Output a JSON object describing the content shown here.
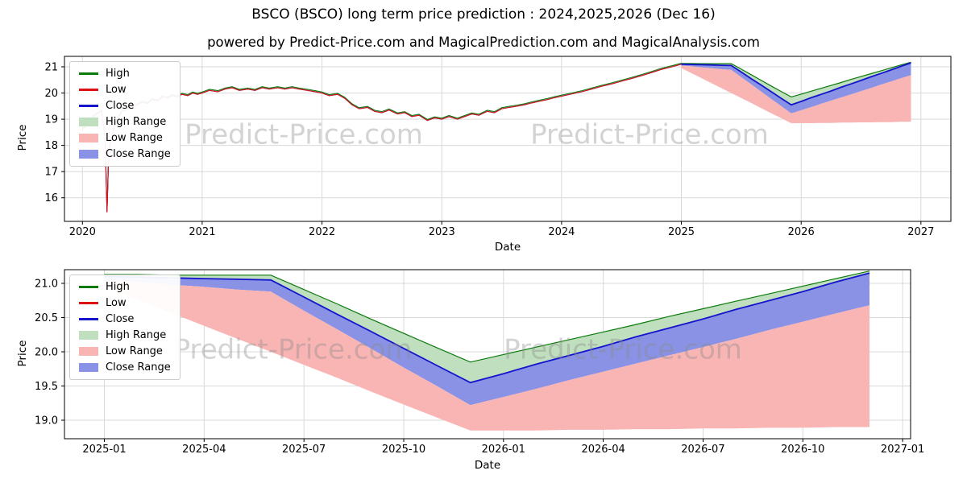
{
  "page": {
    "title": "BSCO (BSCO) long term price prediction : 2024,2025,2026 (Dec 16)",
    "subtitle": "powered by Predict-Price.com and MagicalPrediction.com and MagicalAnalysis.com",
    "watermark": "Predict-Price.com"
  },
  "colors": {
    "high": "#0b7a0b",
    "low": "#dd1111",
    "close": "#1414cc",
    "high_range": "#bfdfbf",
    "low_range": "#f9b4b4",
    "close_range": "#8992e4",
    "grid": "#d9d9d9"
  },
  "legend": [
    {
      "label": "High",
      "swatch": "line",
      "colorKey": "high"
    },
    {
      "label": "Low",
      "swatch": "line",
      "colorKey": "low"
    },
    {
      "label": "Close",
      "swatch": "line",
      "colorKey": "close"
    },
    {
      "label": "High Range",
      "swatch": "patch",
      "colorKey": "high_range"
    },
    {
      "label": "Low Range",
      "swatch": "patch",
      "colorKey": "low_range"
    },
    {
      "label": "Close Range",
      "swatch": "patch",
      "colorKey": "close_range"
    }
  ],
  "chart_data": [
    {
      "type": "line",
      "panel": "top",
      "xlabel": "Date",
      "ylabel": "Price",
      "xlim": [
        2019.85,
        2027.25
      ],
      "ylim": [
        15.1,
        21.4
      ],
      "xticks": [
        {
          "v": 2020,
          "label": "2020"
        },
        {
          "v": 2021,
          "label": "2021"
        },
        {
          "v": 2022,
          "label": "2022"
        },
        {
          "v": 2023,
          "label": "2023"
        },
        {
          "v": 2024,
          "label": "2024"
        },
        {
          "v": 2025,
          "label": "2025"
        },
        {
          "v": 2026,
          "label": "2026"
        },
        {
          "v": 2027,
          "label": "2027"
        }
      ],
      "yticks": [
        {
          "v": 16,
          "label": "16"
        },
        {
          "v": 17,
          "label": "17"
        },
        {
          "v": 18,
          "label": "18"
        },
        {
          "v": 19,
          "label": "19"
        },
        {
          "v": 20,
          "label": "20"
        },
        {
          "v": 21,
          "label": "21"
        }
      ],
      "history": {
        "x": [
          2020.0,
          2020.04,
          2020.08,
          2020.12,
          2020.16,
          2020.19,
          2020.205,
          2020.22,
          2020.25,
          2020.29,
          2020.33,
          2020.38,
          2020.42,
          2020.46,
          2020.5,
          2020.54,
          2020.58,
          2020.63,
          2020.67,
          2020.71,
          2020.75,
          2020.79,
          2020.83,
          2020.88,
          2020.92,
          2020.96,
          2021.0,
          2021.06,
          2021.13,
          2021.19,
          2021.25,
          2021.31,
          2021.38,
          2021.44,
          2021.5,
          2021.56,
          2021.63,
          2021.69,
          2021.75,
          2021.81,
          2021.88,
          2021.94,
          2022.0,
          2022.06,
          2022.13,
          2022.19,
          2022.25,
          2022.31,
          2022.38,
          2022.44,
          2022.5,
          2022.56,
          2022.63,
          2022.69,
          2022.75,
          2022.81,
          2022.88,
          2022.94,
          2023.0,
          2023.06,
          2023.13,
          2023.19,
          2023.25,
          2023.31,
          2023.38,
          2023.44,
          2023.5,
          2023.56,
          2023.63,
          2023.69,
          2023.75,
          2023.81,
          2023.88,
          2023.94,
          2024.0,
          2024.08,
          2024.17,
          2024.25,
          2024.33,
          2024.42,
          2024.5,
          2024.58,
          2024.67,
          2024.75,
          2024.83,
          2024.92,
          2025.0
        ],
        "close": [
          18.6,
          18.8,
          19.05,
          19.2,
          19.3,
          18.2,
          15.45,
          17.8,
          18.45,
          19.0,
          19.3,
          19.38,
          19.5,
          19.55,
          19.65,
          19.6,
          19.75,
          19.7,
          19.85,
          19.8,
          19.9,
          19.85,
          19.95,
          19.9,
          20.0,
          19.95,
          20.0,
          20.1,
          20.05,
          20.15,
          20.2,
          20.1,
          20.15,
          20.1,
          20.2,
          20.15,
          20.2,
          20.15,
          20.2,
          20.15,
          20.1,
          20.05,
          20.0,
          19.9,
          19.95,
          19.8,
          19.55,
          19.4,
          19.45,
          19.3,
          19.25,
          19.35,
          19.2,
          19.25,
          19.1,
          19.15,
          18.95,
          19.05,
          19.0,
          19.1,
          19.0,
          19.1,
          19.2,
          19.15,
          19.3,
          19.25,
          19.4,
          19.45,
          19.5,
          19.55,
          19.62,
          19.68,
          19.75,
          19.82,
          19.88,
          19.96,
          20.05,
          20.15,
          20.25,
          20.35,
          20.45,
          20.55,
          20.67,
          20.78,
          20.9,
          21.0,
          21.1
        ]
      },
      "forecast": {
        "x": [
          2025.0,
          2025.083,
          2025.167,
          2025.25,
          2025.333,
          2025.417,
          2025.5,
          2025.583,
          2025.667,
          2025.75,
          2025.833,
          2025.917,
          2026.0,
          2026.083,
          2026.167,
          2026.25,
          2026.333,
          2026.417,
          2026.5,
          2026.583,
          2026.667,
          2026.75,
          2026.833,
          2026.917
        ],
        "close": [
          21.1,
          21.09,
          21.08,
          21.07,
          21.06,
          21.05,
          20.8,
          20.55,
          20.3,
          20.05,
          19.8,
          19.55,
          19.68,
          19.82,
          19.95,
          20.08,
          20.22,
          20.35,
          20.48,
          20.62,
          20.75,
          20.88,
          21.02,
          21.15
        ],
        "high_upper": [
          21.13,
          21.13,
          21.12,
          21.12,
          21.12,
          21.12,
          20.91,
          20.7,
          20.48,
          20.27,
          20.06,
          19.85,
          19.96,
          20.07,
          20.18,
          20.29,
          20.4,
          20.52,
          20.63,
          20.74,
          20.85,
          20.96,
          21.07,
          21.18
        ],
        "close_lower": [
          21.05,
          21.02,
          20.98,
          20.95,
          20.91,
          20.88,
          20.6,
          20.33,
          20.05,
          19.77,
          19.5,
          19.22,
          19.34,
          19.46,
          19.59,
          19.71,
          19.83,
          19.95,
          20.07,
          20.19,
          20.32,
          20.44,
          20.56,
          20.68
        ],
        "low_lower": [
          20.95,
          20.76,
          20.57,
          20.38,
          20.19,
          20.0,
          19.81,
          19.62,
          19.42,
          19.23,
          19.04,
          18.85,
          18.85,
          18.85,
          18.86,
          18.86,
          18.87,
          18.87,
          18.88,
          18.88,
          18.89,
          18.89,
          18.9,
          18.9
        ]
      }
    },
    {
      "type": "line",
      "panel": "bottom",
      "xlabel": "Date",
      "ylabel": "Price",
      "xlim": [
        2024.9,
        2027.02
      ],
      "ylim": [
        18.73,
        21.2
      ],
      "xticks": [
        {
          "v": 2025.0,
          "label": "2025-01"
        },
        {
          "v": 2025.25,
          "label": "2025-04"
        },
        {
          "v": 2025.5,
          "label": "2025-07"
        },
        {
          "v": 2025.75,
          "label": "2025-10"
        },
        {
          "v": 2026.0,
          "label": "2026-01"
        },
        {
          "v": 2026.25,
          "label": "2026-04"
        },
        {
          "v": 2026.5,
          "label": "2026-07"
        },
        {
          "v": 2026.75,
          "label": "2026-10"
        },
        {
          "v": 2027.0,
          "label": "2027-01"
        }
      ],
      "yticks": [
        {
          "v": 19.0,
          "label": "19.0"
        },
        {
          "v": 19.5,
          "label": "19.5"
        },
        {
          "v": 20.0,
          "label": "20.0"
        },
        {
          "v": 20.5,
          "label": "20.5"
        },
        {
          "v": 21.0,
          "label": "21.0"
        }
      ],
      "forecast": {
        "x": [
          2025.0,
          2025.083,
          2025.167,
          2025.25,
          2025.333,
          2025.417,
          2025.5,
          2025.583,
          2025.667,
          2025.75,
          2025.833,
          2025.917,
          2026.0,
          2026.083,
          2026.167,
          2026.25,
          2026.333,
          2026.417,
          2026.5,
          2026.583,
          2026.667,
          2026.75,
          2026.833,
          2026.917
        ],
        "close": [
          21.1,
          21.09,
          21.08,
          21.07,
          21.06,
          21.05,
          20.8,
          20.55,
          20.3,
          20.05,
          19.8,
          19.55,
          19.68,
          19.82,
          19.95,
          20.08,
          20.22,
          20.35,
          20.48,
          20.62,
          20.75,
          20.88,
          21.02,
          21.15
        ],
        "high_upper": [
          21.13,
          21.13,
          21.12,
          21.12,
          21.12,
          21.12,
          20.91,
          20.7,
          20.48,
          20.27,
          20.06,
          19.85,
          19.96,
          20.07,
          20.18,
          20.29,
          20.4,
          20.52,
          20.63,
          20.74,
          20.85,
          20.96,
          21.07,
          21.18
        ],
        "close_lower": [
          21.05,
          21.02,
          20.98,
          20.95,
          20.91,
          20.88,
          20.6,
          20.33,
          20.05,
          19.77,
          19.5,
          19.22,
          19.34,
          19.46,
          19.59,
          19.71,
          19.83,
          19.95,
          20.07,
          20.19,
          20.32,
          20.44,
          20.56,
          20.68
        ],
        "low_lower": [
          20.95,
          20.76,
          20.57,
          20.38,
          20.19,
          20.0,
          19.81,
          19.62,
          19.42,
          19.23,
          19.04,
          18.85,
          18.85,
          18.85,
          18.86,
          18.86,
          18.87,
          18.87,
          18.88,
          18.88,
          18.89,
          18.89,
          18.9,
          18.9
        ]
      }
    }
  ]
}
